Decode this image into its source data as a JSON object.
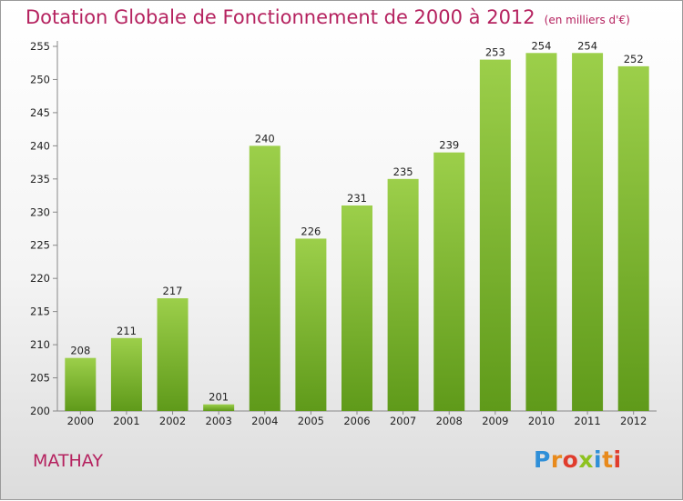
{
  "chart_data": {
    "type": "bar",
    "title": "Dotation Globale de Fonctionnement de 2000 à 2012",
    "subtitle": "(en milliers d'€)",
    "categories": [
      "2000",
      "2001",
      "2002",
      "2003",
      "2004",
      "2005",
      "2006",
      "2007",
      "2008",
      "2009",
      "2010",
      "2011",
      "2012"
    ],
    "values": [
      208,
      211,
      217,
      201,
      240,
      226,
      231,
      235,
      239,
      253,
      254,
      254,
      252
    ],
    "ylim": [
      200,
      255
    ],
    "yticks": [
      200,
      205,
      210,
      215,
      220,
      225,
      230,
      235,
      240,
      245,
      250,
      255
    ],
    "grid": false,
    "legend": "none",
    "bar_color": "#7cb82f",
    "bar_color_light": "#9ccf4a",
    "bar_color_dark": "#5f9a1a"
  },
  "footer": {
    "commune": "MATHAY",
    "logo": "Proxiti"
  },
  "colors": {
    "title": "#b5225f",
    "logo_letters": [
      "#2f8fd8",
      "#e88a1c",
      "#e03c2c",
      "#8dc21f"
    ]
  }
}
